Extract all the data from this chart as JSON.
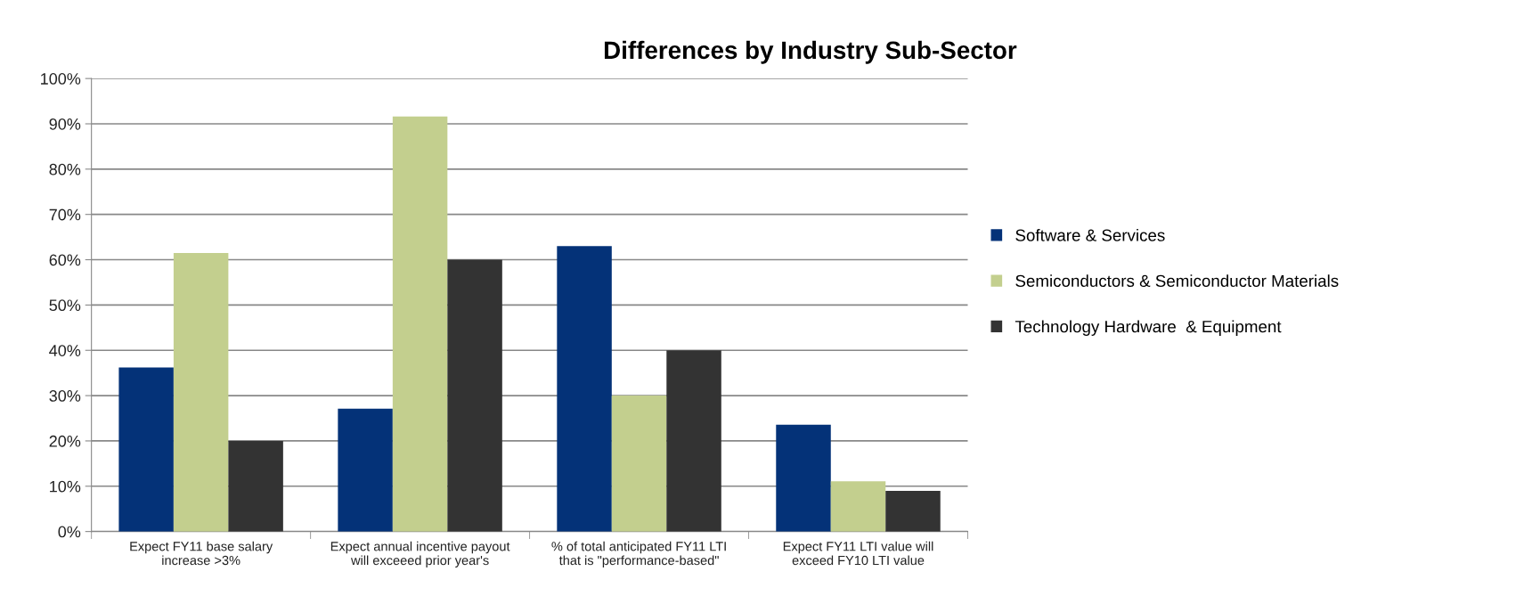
{
  "chart_data": {
    "type": "bar",
    "title": "Differences by Industry Sub-Sector",
    "categories": [
      "Expect FY11 base salary\nincrease >3%",
      "Expect annual incentive payout\nwill exceeed prior year's",
      "% of total anticipated FY11 LTI\nthat is \"performance-based\"",
      "Expect FY11 LTI value will\nexceed FY10 LTI value"
    ],
    "series": [
      {
        "name": "Software & Services",
        "color": "#043278",
        "values": [
          36.2,
          27.1,
          63,
          23.6
        ]
      },
      {
        "name": "Semiconductors & Semiconductor Materials",
        "color": "#c3cf8e",
        "values": [
          61.5,
          91.6,
          30,
          11.1
        ]
      },
      {
        "name": "Technology Hardware  & Equipment",
        "color": "#333333",
        "values": [
          20,
          60,
          40,
          9
        ]
      }
    ],
    "ylim": [
      0,
      100
    ],
    "yticks": [
      {
        "value": 0,
        "label": "0%"
      },
      {
        "value": 10,
        "label": "10%"
      },
      {
        "value": 20,
        "label": "20%"
      },
      {
        "value": 30,
        "label": "30%"
      },
      {
        "value": 40,
        "label": "40%"
      },
      {
        "value": 50,
        "label": "50%"
      },
      {
        "value": 60,
        "label": "60%"
      },
      {
        "value": 70,
        "label": "70%"
      },
      {
        "value": 80,
        "label": "80%"
      },
      {
        "value": 90,
        "label": "90%"
      },
      {
        "value": 100,
        "label": "100%"
      }
    ],
    "grid": "y",
    "legend": "right"
  }
}
